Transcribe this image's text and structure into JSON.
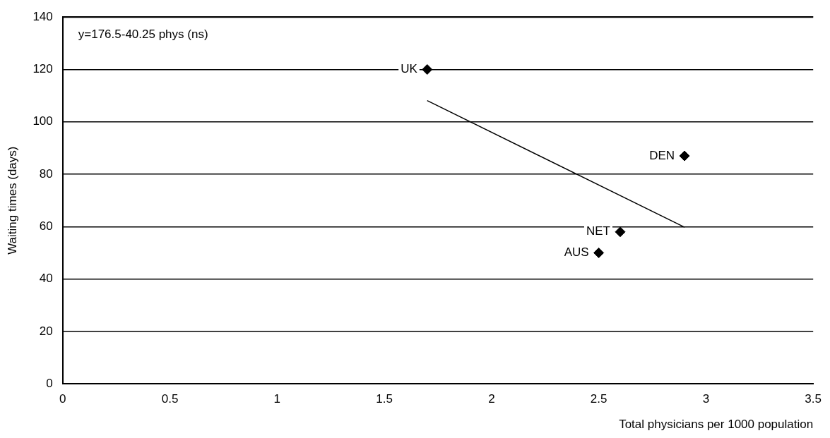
{
  "chart_data": {
    "type": "scatter",
    "xlabel": "Total physicians per 1000 population",
    "ylabel": "Waiting times (days)",
    "x": [
      1.7,
      2.9,
      2.6,
      2.5
    ],
    "series": [
      {
        "color": "#000000",
        "values": [
          120,
          87,
          58,
          50
        ],
        "marker": "diamond"
      },
      {
        "type": "line",
        "color": "#000000",
        "x": [
          1.7,
          2.9
        ],
        "values": [
          108.1,
          59.8
        ],
        "marker": "none"
      }
    ],
    "xlim": [
      0,
      3.5
    ],
    "xticks": [
      0,
      0.5,
      1,
      1.5,
      2,
      2.5,
      3,
      3.5
    ],
    "ylim": [
      0,
      140
    ],
    "yticks": [
      0,
      20,
      40,
      60,
      80,
      100,
      120,
      140
    ],
    "grid": "y",
    "legend": false,
    "annotations": [
      "y=176.5-40.25 phys (ns)",
      {
        "text": "UK",
        "x": 1.7,
        "y": 120
      },
      {
        "text": "DEN",
        "x": 2.9,
        "y": 87
      },
      {
        "text": "NET",
        "x": 2.6,
        "y": 58
      },
      {
        "text": "AUS",
        "x": 2.5,
        "y": 50
      }
    ]
  }
}
